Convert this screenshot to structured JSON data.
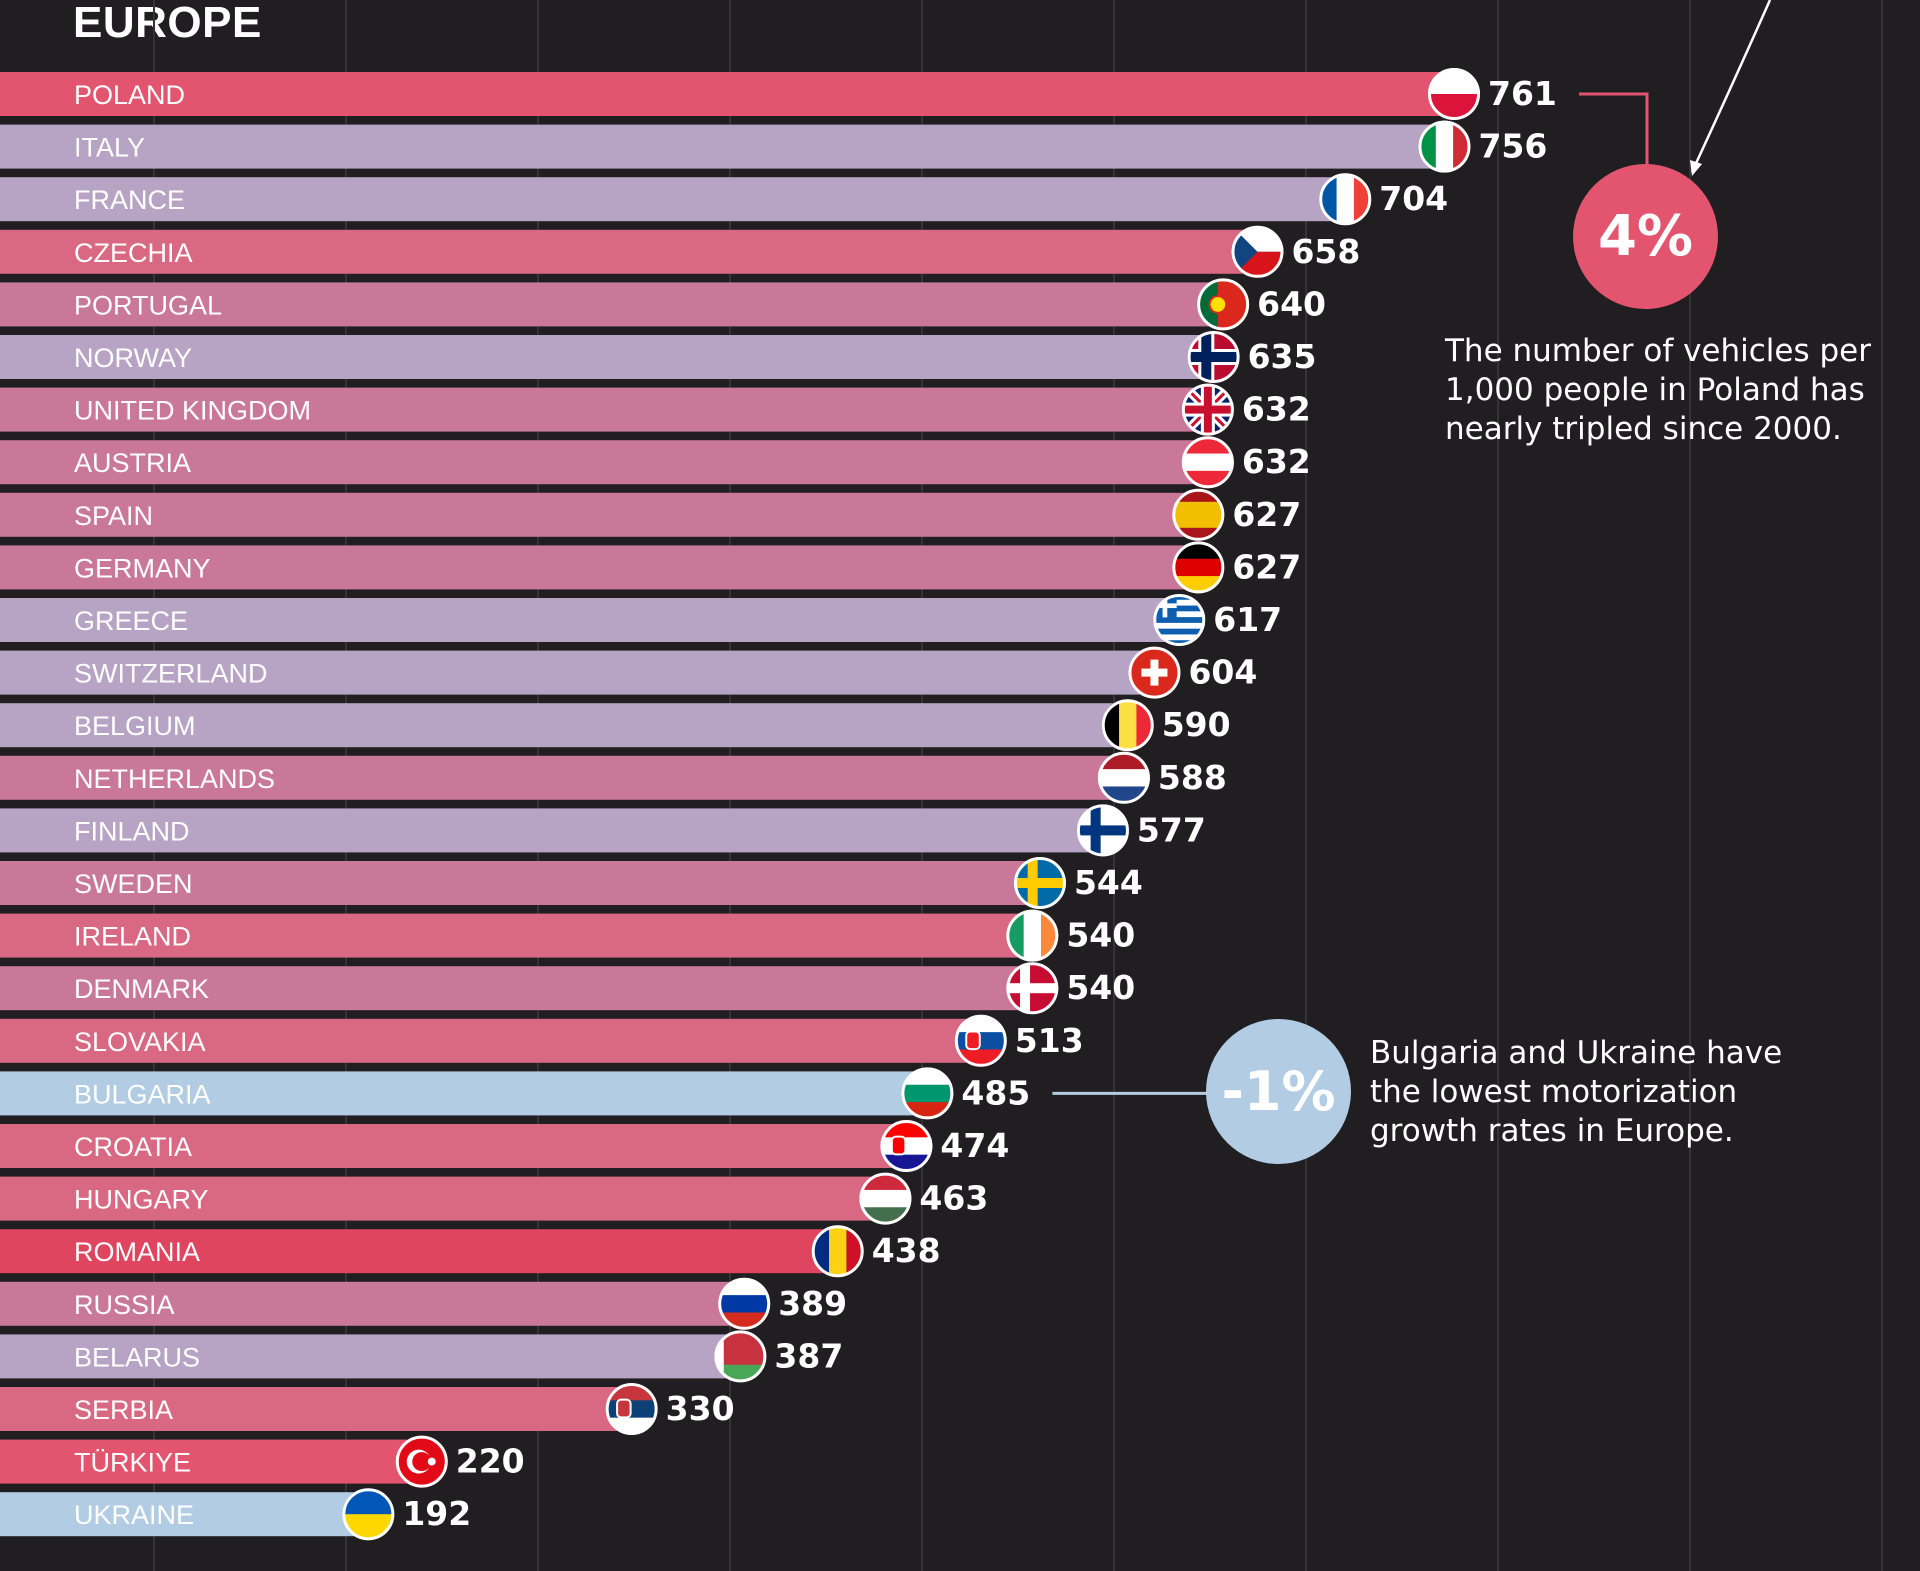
{
  "chart_data": {
    "type": "bar",
    "orientation": "horizontal",
    "title": "EUROPE",
    "xlim": [
      0,
      761
    ],
    "categories": [
      "POLAND",
      "ITALY",
      "FRANCE",
      "CZECHIA",
      "PORTUGAL",
      "NORWAY",
      "UNITED KINGDOM",
      "AUSTRIA",
      "SPAIN",
      "GERMANY",
      "GREECE",
      "SWITZERLAND",
      "BELGIUM",
      "NETHERLANDS",
      "FINLAND",
      "SWEDEN",
      "IRELAND",
      "DENMARK",
      "SLOVAKIA",
      "BULGARIA",
      "CROATIA",
      "HUNGARY",
      "ROMANIA",
      "RUSSIA",
      "BELARUS",
      "SERBIA",
      "TÜRKIYE",
      "UKRAINE"
    ],
    "values": [
      761,
      756,
      704,
      658,
      640,
      635,
      632,
      632,
      627,
      627,
      617,
      604,
      590,
      588,
      577,
      544,
      540,
      540,
      513,
      485,
      474,
      463,
      438,
      389,
      387,
      330,
      220,
      192
    ],
    "bar_colors": [
      "#e3556e",
      "#b7a3c3",
      "#b7a3c3",
      "#d96882",
      "#c97899",
      "#b7a3c3",
      "#c97899",
      "#c97899",
      "#c97899",
      "#c97899",
      "#b7a3c3",
      "#b7a3c3",
      "#b7a3c3",
      "#c97899",
      "#b7a3c3",
      "#c97899",
      "#d96882",
      "#c97899",
      "#d96882",
      "#b2cce3",
      "#d96882",
      "#d96882",
      "#e0455f",
      "#c97899",
      "#b7a3c3",
      "#d96882",
      "#e3556e",
      "#b2cce3"
    ],
    "flags": [
      "poland-flag",
      "italy-flag",
      "france-flag",
      "czechia-flag",
      "portugal-flag",
      "norway-flag",
      "united-kingdom-flag",
      "austria-flag",
      "spain-flag",
      "germany-flag",
      "greece-flag",
      "switzerland-flag",
      "belgium-flag",
      "netherlands-flag",
      "finland-flag",
      "sweden-flag",
      "ireland-flag",
      "denmark-flag",
      "slovakia-flag",
      "bulgaria-flag",
      "croatia-flag",
      "hungary-flag",
      "romania-flag",
      "russia-flag",
      "belarus-flag",
      "serbia-flag",
      "turkiye-flag",
      "ukraine-flag"
    ]
  },
  "callouts": {
    "poland": {
      "badge": "4%",
      "text": [
        "The number of vehicles per",
        "1,000 people in Poland has",
        "nearly tripled since 2000."
      ],
      "color": "#e3556e"
    },
    "bulgaria": {
      "badge": "-1%",
      "text": [
        "Bulgaria and Ukraine have",
        "the lowest motorization",
        "growth rates in Europe."
      ],
      "color": "#b2cce3"
    }
  },
  "colors": {
    "background": "#201e20",
    "gridline": "#353335",
    "text": "#ffffff"
  }
}
